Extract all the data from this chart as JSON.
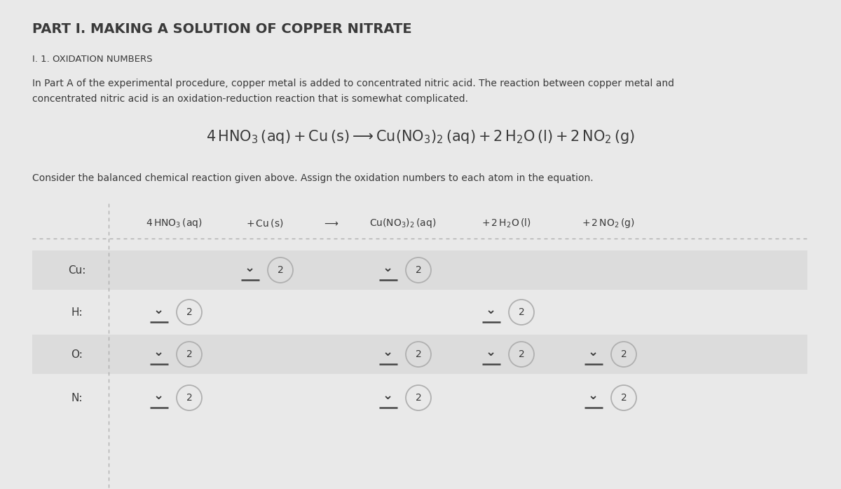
{
  "bg_color": "#e9e9e9",
  "title": "PART I. MAKING A SOLUTION OF COPPER NITRATE",
  "subtitle": "I. 1. OXIDATION NUMBERS",
  "para1": "In Part A of the experimental procedure, copper metal is added to concentrated nitric acid. The reaction between copper metal and",
  "para2": "concentrated nitric acid is an oxidation-reduction reaction that is somewhat complicated.",
  "consider_text": "Consider the balanced chemical reaction given above. Assign the oxidation numbers to each atom in the equation.",
  "text_color": "#3a3a3a",
  "circle_edge_color": "#b0b0b0",
  "line_color": "#444444",
  "sep_color": "#aaaaaa",
  "row_shade": "#dcdcdc",
  "row_clear": "#e9e9e9",
  "grid_data": {
    "Cu": [
      false,
      true,
      false,
      true,
      false,
      false
    ],
    "H": [
      true,
      false,
      false,
      false,
      true,
      false
    ],
    "O": [
      true,
      false,
      false,
      true,
      true,
      true
    ],
    "N": [
      true,
      false,
      false,
      true,
      false,
      true
    ]
  }
}
